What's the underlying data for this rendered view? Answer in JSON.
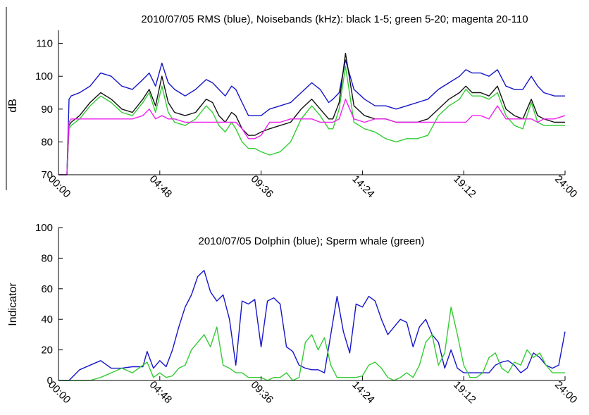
{
  "chart_data": [
    {
      "type": "line",
      "title": "2010/07/05 RMS (blue), Noisebands (kHz): black 1-5; green 5-20; magenta 20-110",
      "xlabel": "",
      "ylabel": "dB",
      "x_tick_labels": [
        "00:00",
        "04:48",
        "09:36",
        "14:24",
        "19:12",
        "24:00"
      ],
      "y_ticks": [
        70,
        80,
        90,
        100,
        110
      ],
      "ylim": [
        70,
        114
      ],
      "xlim": [
        0,
        24
      ],
      "grid": false,
      "legend": "none",
      "series": [
        {
          "name": "RMS",
          "color": "#1515c8",
          "x": [
            0.0,
            0.4,
            0.5,
            0.6,
            1.0,
            1.5,
            2.0,
            2.5,
            3.0,
            3.5,
            4.0,
            4.3,
            4.6,
            4.9,
            5.2,
            5.5,
            6.0,
            6.5,
            7.0,
            7.3,
            7.6,
            7.9,
            8.2,
            8.4,
            8.7,
            9.0,
            9.3,
            9.6,
            10.0,
            10.5,
            11.0,
            11.5,
            12.0,
            12.4,
            12.8,
            13.0,
            13.3,
            13.6,
            14.0,
            14.5,
            15.0,
            15.5,
            16.0,
            16.5,
            17.0,
            17.5,
            18.0,
            18.5,
            19.0,
            19.3,
            19.6,
            20.0,
            20.4,
            20.8,
            21.2,
            21.6,
            22.0,
            22.4,
            22.7,
            23.0,
            23.5,
            24.0
          ],
          "y": [
            70,
            70,
            93,
            94,
            95,
            97,
            101,
            100,
            97,
            96,
            99,
            101,
            97,
            104,
            98,
            96,
            94,
            96,
            99,
            98,
            96,
            94,
            97,
            96,
            92,
            88,
            88,
            88,
            90,
            91,
            92,
            95,
            98,
            96,
            92,
            93,
            95,
            105,
            96,
            93,
            91,
            91,
            90,
            91,
            92,
            93,
            96,
            98,
            100,
            102,
            101,
            101,
            100,
            102,
            97,
            96,
            96,
            100,
            97,
            95,
            94,
            94
          ]
        },
        {
          "name": "1-5 kHz",
          "color": "#111111",
          "x": [
            0.0,
            0.4,
            0.5,
            0.6,
            1.0,
            1.5,
            2.0,
            2.5,
            3.0,
            3.5,
            4.0,
            4.3,
            4.6,
            4.9,
            5.2,
            5.5,
            6.0,
            6.5,
            7.0,
            7.3,
            7.6,
            7.9,
            8.2,
            8.4,
            8.7,
            9.0,
            9.3,
            9.6,
            10.0,
            10.5,
            11.0,
            11.5,
            12.0,
            12.4,
            12.8,
            13.0,
            13.3,
            13.6,
            14.0,
            14.5,
            15.0,
            15.5,
            16.0,
            16.5,
            17.0,
            17.5,
            18.0,
            18.5,
            19.0,
            19.3,
            19.6,
            20.0,
            20.4,
            20.8,
            21.2,
            21.6,
            22.0,
            22.4,
            22.7,
            23.0,
            23.5,
            24.0
          ],
          "y": [
            70,
            70,
            85,
            86,
            88,
            92,
            95,
            93,
            90,
            89,
            93,
            96,
            91,
            100,
            92,
            89,
            88,
            89,
            93,
            92,
            88,
            86,
            89,
            88,
            84,
            82,
            82,
            83,
            84,
            85,
            86,
            90,
            93,
            90,
            87,
            87,
            92,
            107,
            91,
            88,
            87,
            87,
            86,
            86,
            86,
            87,
            90,
            93,
            95,
            97,
            95,
            95,
            94,
            97,
            90,
            88,
            87,
            93,
            88,
            87,
            86,
            86
          ]
        },
        {
          "name": "5-20 kHz",
          "color": "#33cc33",
          "x": [
            0.0,
            0.4,
            0.5,
            0.6,
            1.0,
            1.5,
            2.0,
            2.5,
            3.0,
            3.5,
            4.0,
            4.3,
            4.6,
            4.9,
            5.2,
            5.5,
            6.0,
            6.5,
            7.0,
            7.3,
            7.6,
            7.9,
            8.2,
            8.4,
            8.7,
            9.0,
            9.3,
            9.6,
            10.0,
            10.5,
            11.0,
            11.5,
            12.0,
            12.4,
            12.8,
            13.0,
            13.3,
            13.6,
            14.0,
            14.5,
            15.0,
            15.5,
            16.0,
            16.5,
            17.0,
            17.5,
            18.0,
            18.5,
            19.0,
            19.3,
            19.6,
            20.0,
            20.4,
            20.8,
            21.2,
            21.6,
            22.0,
            22.4,
            22.7,
            23.0,
            23.5,
            24.0
          ],
          "y": [
            70,
            70,
            84,
            85,
            87,
            91,
            94,
            92,
            89,
            88,
            92,
            95,
            89,
            97,
            89,
            86,
            85,
            87,
            91,
            89,
            85,
            83,
            86,
            84,
            80,
            78,
            78,
            77,
            76,
            77,
            80,
            87,
            91,
            88,
            84,
            84,
            90,
            103,
            86,
            84,
            83,
            81,
            80,
            81,
            81,
            82,
            88,
            91,
            93,
            96,
            94,
            94,
            93,
            95,
            88,
            85,
            84,
            92,
            86,
            85,
            85,
            85
          ]
        },
        {
          "name": "20-110 kHz",
          "color": "#ee22ee",
          "x": [
            0.0,
            0.4,
            0.5,
            0.6,
            1.0,
            1.5,
            2.0,
            2.5,
            3.0,
            3.5,
            4.0,
            4.3,
            4.6,
            4.9,
            5.2,
            5.5,
            6.0,
            6.5,
            7.0,
            7.3,
            7.6,
            7.9,
            8.2,
            8.4,
            8.7,
            9.0,
            9.3,
            9.6,
            10.0,
            10.5,
            11.0,
            11.5,
            12.0,
            12.4,
            12.8,
            13.0,
            13.3,
            13.6,
            14.0,
            14.5,
            15.0,
            15.5,
            16.0,
            16.5,
            17.0,
            17.5,
            18.0,
            18.5,
            19.0,
            19.3,
            19.6,
            20.0,
            20.4,
            20.8,
            21.2,
            21.6,
            22.0,
            22.4,
            22.7,
            23.0,
            23.5,
            24.0
          ],
          "y": [
            70,
            70,
            86,
            87,
            87,
            87,
            87,
            87,
            87,
            87,
            88,
            90,
            87,
            88,
            87,
            87,
            86,
            86,
            86,
            86,
            86,
            86,
            86,
            86,
            84,
            81,
            81,
            82,
            86,
            86,
            87,
            87,
            87,
            86,
            86,
            86,
            87,
            93,
            87,
            86,
            87,
            87,
            86,
            86,
            86,
            86,
            86,
            86,
            86,
            86,
            88,
            88,
            87,
            91,
            87,
            87,
            87,
            87,
            86,
            87,
            87,
            88
          ]
        }
      ]
    },
    {
      "type": "line",
      "title": "2010/07/05 Dolphin (blue); Sperm whale (green)",
      "xlabel": "",
      "ylabel": "Indicator",
      "x_tick_labels": [
        "00:00",
        "04:48",
        "09:36",
        "14:24",
        "19:12",
        "24:00"
      ],
      "y_ticks": [
        0,
        20,
        40,
        60,
        80,
        100
      ],
      "ylim": [
        0,
        100
      ],
      "xlim": [
        0,
        24
      ],
      "grid": false,
      "legend": "none",
      "series": [
        {
          "name": "Dolphin",
          "color": "#1515c8",
          "x": [
            0.0,
            0.5,
            1.0,
            1.5,
            2.0,
            2.5,
            3.0,
            3.5,
            4.0,
            4.2,
            4.5,
            4.8,
            5.1,
            5.4,
            5.7,
            6.0,
            6.3,
            6.6,
            6.9,
            7.2,
            7.5,
            7.8,
            8.1,
            8.4,
            8.7,
            9.0,
            9.3,
            9.6,
            9.9,
            10.2,
            10.5,
            10.8,
            11.1,
            11.4,
            11.7,
            12.0,
            12.3,
            12.6,
            12.9,
            13.2,
            13.5,
            13.8,
            14.1,
            14.4,
            14.7,
            15.0,
            15.3,
            15.6,
            15.9,
            16.2,
            16.5,
            16.8,
            17.1,
            17.4,
            17.7,
            18.0,
            18.3,
            18.6,
            18.9,
            19.2,
            19.5,
            19.8,
            20.1,
            20.4,
            20.7,
            21.0,
            21.3,
            21.6,
            21.9,
            22.2,
            22.5,
            22.8,
            23.1,
            23.4,
            23.7,
            24.0
          ],
          "y": [
            0,
            0,
            7,
            10,
            13,
            8,
            8,
            9,
            9,
            19,
            8,
            13,
            9,
            20,
            35,
            48,
            56,
            68,
            72,
            58,
            52,
            56,
            40,
            10,
            52,
            50,
            53,
            22,
            52,
            54,
            50,
            22,
            19,
            10,
            8,
            7,
            7,
            5,
            30,
            55,
            32,
            18,
            50,
            48,
            55,
            52,
            40,
            30,
            35,
            40,
            38,
            22,
            35,
            40,
            30,
            25,
            8,
            20,
            8,
            5,
            5,
            5,
            5,
            5,
            10,
            12,
            13,
            10,
            5,
            8,
            18,
            15,
            10,
            8,
            10,
            32
          ]
        },
        {
          "name": "Sperm whale",
          "color": "#33cc33",
          "x": [
            0.0,
            0.5,
            1.0,
            1.5,
            2.0,
            2.5,
            3.0,
            3.5,
            4.0,
            4.2,
            4.5,
            4.8,
            5.1,
            5.4,
            5.7,
            6.0,
            6.3,
            6.6,
            6.9,
            7.2,
            7.5,
            7.8,
            8.1,
            8.4,
            8.7,
            9.0,
            9.3,
            9.6,
            9.9,
            10.2,
            10.5,
            10.8,
            11.1,
            11.4,
            11.7,
            12.0,
            12.3,
            12.6,
            12.9,
            13.2,
            13.5,
            13.8,
            14.1,
            14.4,
            14.7,
            15.0,
            15.3,
            15.6,
            15.9,
            16.2,
            16.5,
            16.8,
            17.1,
            17.4,
            17.7,
            18.0,
            18.3,
            18.6,
            18.9,
            19.2,
            19.5,
            19.8,
            20.1,
            20.4,
            20.7,
            21.0,
            21.3,
            21.6,
            21.9,
            22.2,
            22.5,
            22.8,
            23.1,
            23.4,
            23.7,
            24.0
          ],
          "y": [
            0,
            0,
            0,
            0,
            2,
            5,
            8,
            5,
            10,
            12,
            2,
            5,
            2,
            3,
            8,
            10,
            20,
            25,
            30,
            22,
            35,
            10,
            8,
            5,
            5,
            2,
            2,
            2,
            0,
            2,
            2,
            5,
            0,
            2,
            25,
            30,
            20,
            28,
            10,
            2,
            2,
            2,
            2,
            3,
            10,
            12,
            8,
            2,
            0,
            2,
            5,
            2,
            10,
            25,
            30,
            10,
            18,
            48,
            30,
            10,
            2,
            2,
            5,
            15,
            18,
            8,
            5,
            12,
            10,
            20,
            15,
            18,
            10,
            5,
            5,
            5
          ]
        }
      ]
    }
  ]
}
